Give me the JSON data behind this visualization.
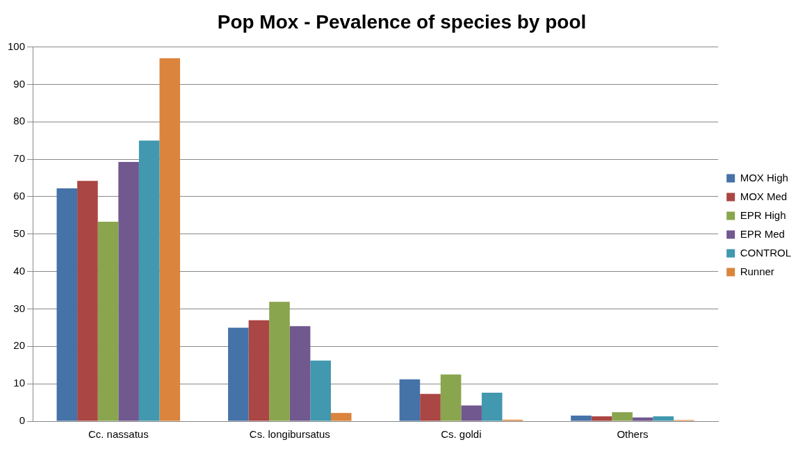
{
  "chart_data": {
    "type": "bar",
    "title": "Pop Mox - Pevalence of species by pool",
    "categories": [
      "Cc. nassatus",
      "Cs. longibursatus",
      "Cs. goldi",
      "Others"
    ],
    "series": [
      {
        "name": "MOX High",
        "color": "#4572a7",
        "values": [
          62.2,
          25,
          11.2,
          1.5
        ]
      },
      {
        "name": "MOX Med",
        "color": "#aa4643",
        "values": [
          64.2,
          27,
          7.3,
          1.3
        ]
      },
      {
        "name": "EPR High",
        "color": "#89a54e",
        "values": [
          53.3,
          31.9,
          12.5,
          2.4
        ]
      },
      {
        "name": "EPR Med",
        "color": "#71588f",
        "values": [
          69.3,
          25.4,
          4.2,
          1
        ]
      },
      {
        "name": "CONTROL",
        "color": "#4198af",
        "values": [
          75,
          16.2,
          7.6,
          1.3
        ]
      },
      {
        "name": "Runner",
        "color": "#db843d",
        "values": [
          97,
          2.2,
          0.4,
          0.3
        ]
      }
    ],
    "ylim": [
      0,
      100
    ],
    "yticks": [
      0,
      10,
      20,
      30,
      40,
      50,
      60,
      70,
      80,
      90,
      100
    ],
    "grid": "y",
    "legend": "right"
  }
}
